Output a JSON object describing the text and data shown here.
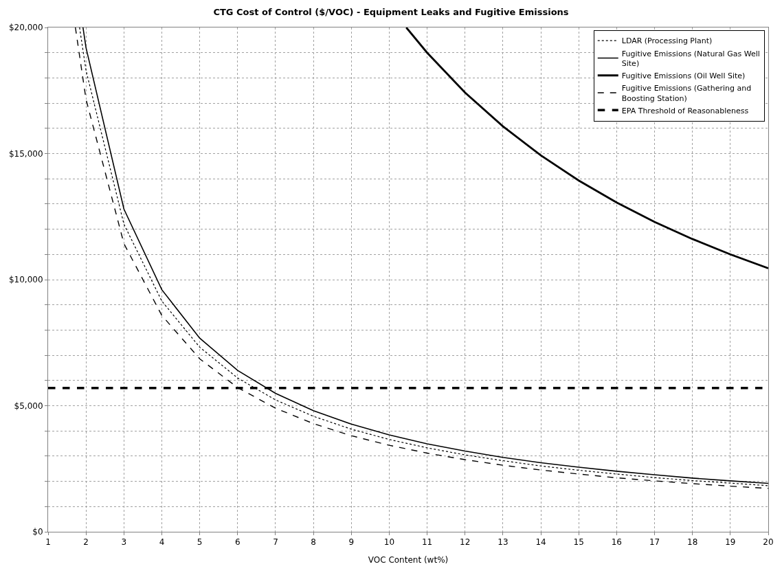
{
  "chart_data": {
    "type": "line",
    "title": "CTG Cost of Control ($/VOC) - Equipment Leaks and Fugitive Emissions",
    "xlabel": "VOC Content (wt%)",
    "xlim": [
      1,
      20
    ],
    "xticks": [
      1,
      2,
      3,
      4,
      5,
      6,
      7,
      8,
      9,
      10,
      11,
      12,
      13,
      14,
      15,
      16,
      17,
      18,
      19,
      20
    ],
    "ylim": [
      0,
      20000
    ],
    "yticks": [
      {
        "value": 0,
        "label": "$0"
      },
      {
        "value": 1000,
        "label": null
      },
      {
        "value": 2000,
        "label": null
      },
      {
        "value": 3000,
        "label": null
      },
      {
        "value": 4000,
        "label": null
      },
      {
        "value": 5000,
        "label": "$5,000"
      },
      {
        "value": 6000,
        "label": null
      },
      {
        "value": 7000,
        "label": null
      },
      {
        "value": 8000,
        "label": null
      },
      {
        "value": 9000,
        "label": null
      },
      {
        "value": 10000,
        "label": "$10,000"
      },
      {
        "value": 11000,
        "label": null
      },
      {
        "value": 12000,
        "label": null
      },
      {
        "value": 13000,
        "label": null
      },
      {
        "value": 14000,
        "label": null
      },
      {
        "value": 15000,
        "label": "$15,000"
      },
      {
        "value": 16000,
        "label": null
      },
      {
        "value": 17000,
        "label": null
      },
      {
        "value": 18000,
        "label": null
      },
      {
        "value": 19000,
        "label": null
      },
      {
        "value": 20000,
        "label": "$20,000"
      }
    ],
    "grid": true,
    "legend": "top right",
    "marker": "none",
    "series": [
      {
        "name": "LDAR (Processing Plant)",
        "color": "#000000",
        "line_style": "dotted",
        "x": [
          1.83,
          2,
          3,
          4,
          5,
          6,
          7,
          8,
          9,
          10,
          11,
          12,
          13,
          14,
          15,
          16,
          17,
          18,
          19,
          20
        ],
        "values": [
          20000,
          18300,
          12200,
          9150,
          7320,
          6100,
          5230,
          4580,
          4070,
          3660,
          3330,
          3050,
          2820,
          2610,
          2440,
          2290,
          2150,
          2030,
          1930,
          1830
        ]
      },
      {
        "name": "Fugitive Emissions (Natural Gas Well Site)",
        "color": "#000000",
        "line_style": "solid",
        "x": [
          1.92,
          2,
          3,
          4,
          5,
          6,
          7,
          8,
          9,
          10,
          11,
          12,
          13,
          14,
          15,
          16,
          17,
          18,
          19,
          20
        ],
        "values": [
          20000,
          19200,
          12800,
          9600,
          7680,
          6400,
          5490,
          4800,
          4270,
          3840,
          3490,
          3200,
          2950,
          2740,
          2560,
          2400,
          2260,
          2130,
          2020,
          1920
        ]
      },
      {
        "name": "Fugitive Emissions (Oil Well Site)",
        "color": "#000000",
        "line_style": "solid",
        "x": [
          10.45,
          11,
          12,
          13,
          14,
          15,
          16,
          17,
          18,
          19,
          20
        ],
        "values": [
          20000,
          19000,
          17420,
          16080,
          14930,
          13930,
          13060,
          12290,
          11610,
          11000,
          10450
        ]
      },
      {
        "name": "Fugitive Emissions (Gathering and Boosting Station)",
        "color": "#000000",
        "line_style": "dashed",
        "x": [
          1.72,
          2,
          3,
          4,
          5,
          6,
          7,
          8,
          9,
          10,
          11,
          12,
          13,
          14,
          15,
          16,
          17,
          18,
          19,
          20
        ],
        "values": [
          20000,
          17150,
          11430,
          8580,
          6860,
          5720,
          4900,
          4290,
          3810,
          3430,
          3120,
          2860,
          2640,
          2450,
          2290,
          2140,
          2020,
          1910,
          1810,
          1720
        ]
      }
    ],
    "ref_lines": [
      {
        "axis": "y",
        "value": 5700,
        "label": "EPA Threshold of Reasonableness",
        "color": "#000000",
        "line_style": "dashed"
      }
    ]
  }
}
